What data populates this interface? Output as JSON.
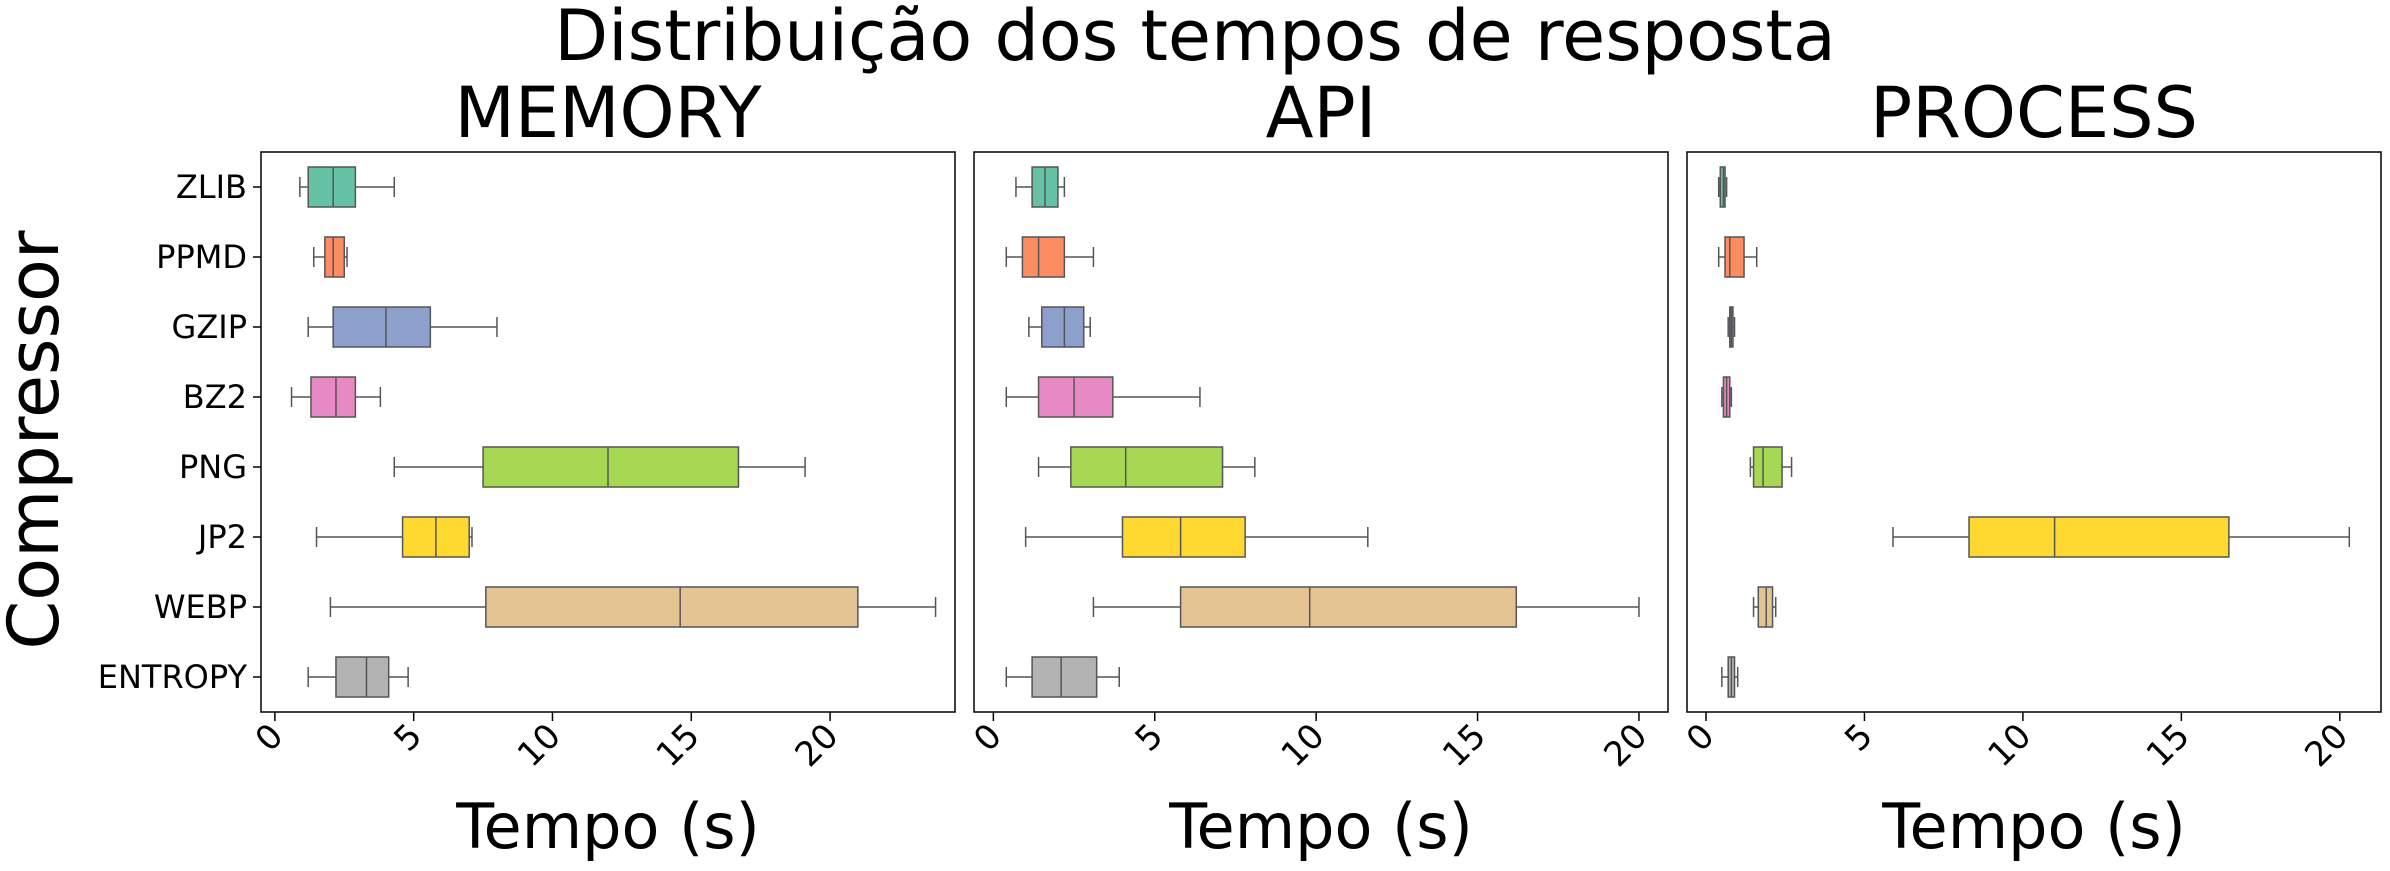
{
  "figure": {
    "title": "Distribuição dos tempos de resposta",
    "ylabel": "Compressor"
  },
  "colors": {
    "ZLIB": "#66c2a5",
    "PPMD": "#fc8d62",
    "GZIP": "#8da0cb",
    "BZ2": "#e78ac3",
    "PNG": "#a6d854",
    "JP2": "#ffd92f",
    "WEBP": "#e5c494",
    "ENTROPY": "#b3b3b3",
    "line": "#555555"
  },
  "chart_data": [
    {
      "type": "box",
      "title": "MEMORY",
      "xlabel": "Tempo (s)",
      "ylabel": "Compressor",
      "categories": [
        "ZLIB",
        "PPMD",
        "GZIP",
        "BZ2",
        "PNG",
        "JP2",
        "WEBP",
        "ENTROPY"
      ],
      "xlim": [
        -0.5,
        24.5
      ],
      "xticks": [
        0,
        5,
        10,
        15,
        20
      ],
      "boxes": [
        {
          "label": "ZLIB",
          "whislo": 0.9,
          "q1": 1.2,
          "med": 2.1,
          "q3": 2.9,
          "whishi": 4.3
        },
        {
          "label": "PPMD",
          "whislo": 1.4,
          "q1": 1.8,
          "med": 2.1,
          "q3": 2.5,
          "whishi": 2.6
        },
        {
          "label": "GZIP",
          "whislo": 1.2,
          "q1": 2.1,
          "med": 4.0,
          "q3": 5.6,
          "whishi": 8.0
        },
        {
          "label": "BZ2",
          "whislo": 0.6,
          "q1": 1.3,
          "med": 2.2,
          "q3": 2.9,
          "whishi": 3.8
        },
        {
          "label": "PNG",
          "whislo": 4.3,
          "q1": 7.5,
          "med": 12.0,
          "q3": 16.7,
          "whishi": 19.1
        },
        {
          "label": "JP2",
          "whislo": 1.5,
          "q1": 4.6,
          "med": 5.8,
          "q3": 7.0,
          "whishi": 7.1
        },
        {
          "label": "WEBP",
          "whislo": 2.0,
          "q1": 7.6,
          "med": 14.6,
          "q3": 21.0,
          "whishi": 23.8
        },
        {
          "label": "ENTROPY",
          "whislo": 1.2,
          "q1": 2.2,
          "med": 3.3,
          "q3": 4.1,
          "whishi": 4.8
        }
      ]
    },
    {
      "type": "box",
      "title": "API",
      "xlabel": "Tempo (s)",
      "categories": [
        "ZLIB",
        "PPMD",
        "GZIP",
        "BZ2",
        "PNG",
        "JP2",
        "WEBP",
        "ENTROPY"
      ],
      "xlim": [
        -0.6,
        20.9
      ],
      "xticks": [
        0,
        5,
        10,
        15,
        20
      ],
      "boxes": [
        {
          "label": "ZLIB",
          "whislo": 0.7,
          "q1": 1.2,
          "med": 1.6,
          "q3": 2.0,
          "whishi": 2.2
        },
        {
          "label": "PPMD",
          "whislo": 0.4,
          "q1": 0.9,
          "med": 1.4,
          "q3": 2.2,
          "whishi": 3.1
        },
        {
          "label": "GZIP",
          "whislo": 1.1,
          "q1": 1.5,
          "med": 2.2,
          "q3": 2.8,
          "whishi": 3.0
        },
        {
          "label": "BZ2",
          "whislo": 0.4,
          "q1": 1.4,
          "med": 2.5,
          "q3": 3.7,
          "whishi": 6.4
        },
        {
          "label": "PNG",
          "whislo": 1.4,
          "q1": 2.4,
          "med": 4.1,
          "q3": 7.1,
          "whishi": 8.1
        },
        {
          "label": "JP2",
          "whislo": 1.0,
          "q1": 4.0,
          "med": 5.8,
          "q3": 7.8,
          "whishi": 11.6
        },
        {
          "label": "WEBP",
          "whislo": 3.1,
          "q1": 5.8,
          "med": 9.8,
          "q3": 16.2,
          "whishi": 20.0
        },
        {
          "label": "ENTROPY",
          "whislo": 0.4,
          "q1": 1.2,
          "med": 2.1,
          "q3": 3.2,
          "whishi": 3.9
        }
      ]
    },
    {
      "type": "box",
      "title": "PROCESS",
      "xlabel": "Tempo (s)",
      "categories": [
        "ZLIB",
        "PPMD",
        "GZIP",
        "BZ2",
        "PNG",
        "JP2",
        "WEBP",
        "ENTROPY"
      ],
      "xlim": [
        -0.6,
        21.3
      ],
      "xticks": [
        0,
        5,
        10,
        15,
        20
      ],
      "boxes": [
        {
          "label": "ZLIB",
          "whislo": 0.4,
          "q1": 0.45,
          "med": 0.55,
          "q3": 0.6,
          "whishi": 0.65
        },
        {
          "label": "PPMD",
          "whislo": 0.4,
          "q1": 0.6,
          "med": 0.75,
          "q3": 1.2,
          "whishi": 1.6
        },
        {
          "label": "GZIP",
          "whislo": 0.7,
          "q1": 0.75,
          "med": 0.8,
          "q3": 0.85,
          "whishi": 0.9
        },
        {
          "label": "BZ2",
          "whislo": 0.5,
          "q1": 0.55,
          "med": 0.65,
          "q3": 0.75,
          "whishi": 0.8
        },
        {
          "label": "PNG",
          "whislo": 1.4,
          "q1": 1.5,
          "med": 1.8,
          "q3": 2.4,
          "whishi": 2.7
        },
        {
          "label": "JP2",
          "whislo": 5.9,
          "q1": 8.3,
          "med": 11.0,
          "q3": 16.5,
          "whishi": 20.3
        },
        {
          "label": "WEBP",
          "whislo": 1.5,
          "q1": 1.65,
          "med": 1.9,
          "q3": 2.1,
          "whishi": 2.2
        },
        {
          "label": "ENTROPY",
          "whislo": 0.5,
          "q1": 0.7,
          "med": 0.8,
          "q3": 0.9,
          "whishi": 1.0
        }
      ]
    }
  ]
}
